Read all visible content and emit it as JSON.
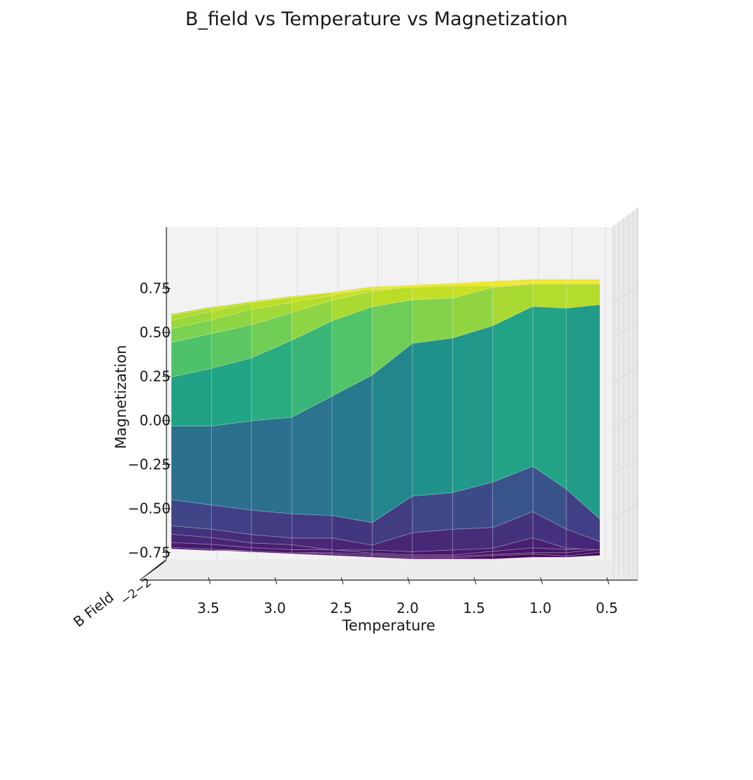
{
  "chart_data": {
    "type": "surface",
    "title": "B_field vs Temperature vs Magnetization",
    "xlabel": "Temperature",
    "ylabel": "Magnetization",
    "zlabel": "B Field",
    "x_ticks": [
      "3.5",
      "3.0",
      "2.5",
      "2.0",
      "1.5",
      "1.0",
      "0.5"
    ],
    "y_ticks": [
      "0.75",
      "0.50",
      "0.25",
      "0.00",
      "−0.25",
      "−0.50",
      "−0.75"
    ],
    "z_tick_text": "−2−2",
    "x_range": [
      3.8,
      0.6
    ],
    "y_range": [
      -0.9,
      1.0
    ],
    "colormap": "viridis",
    "grid": true,
    "temperature": [
      3.8,
      3.5,
      3.2,
      2.9,
      2.6,
      2.3,
      2.0,
      1.7,
      1.4,
      1.1,
      0.85,
      0.6
    ],
    "levels": [
      {
        "b_field": -2.0,
        "magnetization": [
          -0.82,
          -0.83,
          -0.84,
          -0.85,
          -0.86,
          -0.87,
          -0.88,
          -0.88,
          -0.88,
          -0.87,
          -0.87,
          -0.86
        ]
      },
      {
        "b_field": -1.5,
        "magnetization": [
          -0.8,
          -0.81,
          -0.81,
          -0.82,
          -0.83,
          -0.84,
          -0.85,
          -0.85,
          -0.84,
          -0.83,
          -0.84,
          -0.82
        ]
      },
      {
        "b_field": -1.0,
        "magnetization": [
          -0.77,
          -0.78,
          -0.79,
          -0.8,
          -0.8,
          -0.81,
          -0.82,
          -0.82,
          -0.81,
          -0.8,
          -0.8,
          -0.78
        ]
      },
      {
        "b_field": -0.75,
        "magnetization": [
          -0.72,
          -0.73,
          -0.75,
          -0.76,
          -0.76,
          -0.78,
          -0.79,
          -0.79,
          -0.77,
          -0.75,
          -0.76,
          -0.75
        ]
      },
      {
        "b_field": -0.5,
        "magnetization": [
          -0.65,
          -0.67,
          -0.7,
          -0.71,
          -0.74,
          -0.74,
          -0.75,
          -0.74,
          -0.73,
          -0.67,
          -0.73,
          -0.74
        ]
      },
      {
        "b_field": -0.25,
        "magnetization": [
          -0.58,
          -0.6,
          -0.63,
          -0.65,
          -0.65,
          -0.69,
          -0.62,
          -0.6,
          -0.59,
          -0.5,
          -0.6,
          -0.67
        ]
      },
      {
        "b_field": 0.0,
        "magnetization": [
          -0.41,
          -0.44,
          -0.47,
          -0.49,
          -0.5,
          -0.54,
          -0.39,
          -0.37,
          -0.31,
          -0.22,
          -0.35,
          -0.52
        ]
      },
      {
        "b_field": 0.25,
        "magnetization": [
          0.03,
          0.03,
          0.06,
          0.08,
          0.2,
          0.32,
          0.5,
          0.53,
          0.6,
          0.71,
          0.7,
          0.72
        ]
      },
      {
        "b_field": 0.5,
        "magnetization": [
          0.33,
          0.38,
          0.44,
          0.54,
          0.65,
          0.73,
          0.77,
          0.78,
          0.84,
          0.86,
          0.86,
          0.86
        ]
      },
      {
        "b_field": 0.75,
        "magnetization": [
          0.55,
          0.6,
          0.65,
          0.72,
          0.79,
          0.84,
          0.87,
          0.88,
          0.9,
          0.91,
          0.91,
          0.91
        ]
      },
      {
        "b_field": 1.0,
        "magnetization": [
          0.65,
          0.7,
          0.76,
          0.8,
          0.84,
          0.88,
          0.9,
          0.91,
          0.92,
          0.93,
          0.93,
          0.93
        ]
      },
      {
        "b_field": 1.25,
        "magnetization": [
          0.72,
          0.77,
          0.82,
          0.85,
          0.88,
          0.91,
          0.92,
          0.93,
          0.94,
          0.95,
          0.95,
          0.95
        ]
      },
      {
        "b_field": 1.5,
        "magnetization": [
          0.77,
          0.81,
          0.85,
          0.88,
          0.9,
          0.92,
          0.94,
          0.95,
          0.95,
          0.96,
          0.96,
          0.96
        ]
      },
      {
        "b_field": 2.0,
        "magnetization": [
          0.8,
          0.84,
          0.87,
          0.9,
          0.92,
          0.94,
          0.95,
          0.96,
          0.96,
          0.97,
          0.97,
          0.97
        ]
      }
    ]
  }
}
